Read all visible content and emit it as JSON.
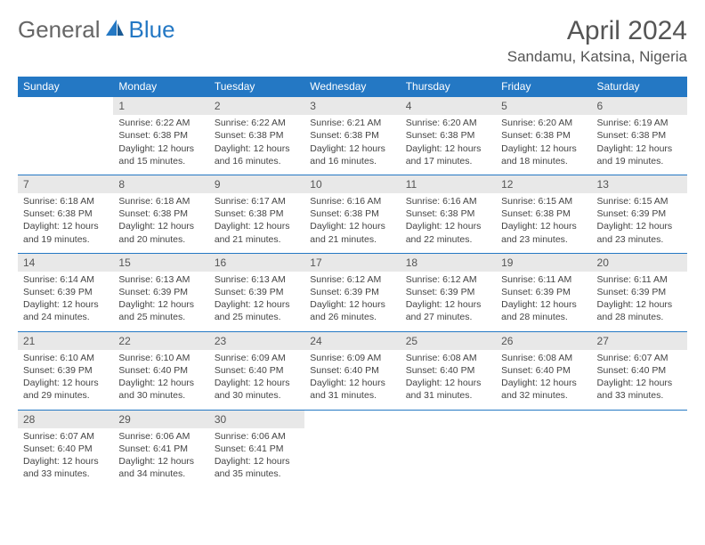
{
  "logo": {
    "part1": "General",
    "part2": "Blue"
  },
  "title": "April 2024",
  "location": "Sandamu, Katsina, Nigeria",
  "colors": {
    "header_bg": "#2478c4",
    "header_text": "#ffffff",
    "daynum_bg": "#e8e8e8",
    "cell_border": "#2478c4",
    "body_text": "#444444",
    "title_text": "#555555"
  },
  "typography": {
    "title_fontsize": 30,
    "location_fontsize": 17,
    "dayheader_fontsize": 12,
    "cell_fontsize": 10.5
  },
  "day_headers": [
    "Sunday",
    "Monday",
    "Tuesday",
    "Wednesday",
    "Thursday",
    "Friday",
    "Saturday"
  ],
  "weeks": [
    [
      {
        "n": "",
        "sr": "",
        "ss": "",
        "dl": ""
      },
      {
        "n": "1",
        "sr": "Sunrise: 6:22 AM",
        "ss": "Sunset: 6:38 PM",
        "dl": "Daylight: 12 hours and 15 minutes."
      },
      {
        "n": "2",
        "sr": "Sunrise: 6:22 AM",
        "ss": "Sunset: 6:38 PM",
        "dl": "Daylight: 12 hours and 16 minutes."
      },
      {
        "n": "3",
        "sr": "Sunrise: 6:21 AM",
        "ss": "Sunset: 6:38 PM",
        "dl": "Daylight: 12 hours and 16 minutes."
      },
      {
        "n": "4",
        "sr": "Sunrise: 6:20 AM",
        "ss": "Sunset: 6:38 PM",
        "dl": "Daylight: 12 hours and 17 minutes."
      },
      {
        "n": "5",
        "sr": "Sunrise: 6:20 AM",
        "ss": "Sunset: 6:38 PM",
        "dl": "Daylight: 12 hours and 18 minutes."
      },
      {
        "n": "6",
        "sr": "Sunrise: 6:19 AM",
        "ss": "Sunset: 6:38 PM",
        "dl": "Daylight: 12 hours and 19 minutes."
      }
    ],
    [
      {
        "n": "7",
        "sr": "Sunrise: 6:18 AM",
        "ss": "Sunset: 6:38 PM",
        "dl": "Daylight: 12 hours and 19 minutes."
      },
      {
        "n": "8",
        "sr": "Sunrise: 6:18 AM",
        "ss": "Sunset: 6:38 PM",
        "dl": "Daylight: 12 hours and 20 minutes."
      },
      {
        "n": "9",
        "sr": "Sunrise: 6:17 AM",
        "ss": "Sunset: 6:38 PM",
        "dl": "Daylight: 12 hours and 21 minutes."
      },
      {
        "n": "10",
        "sr": "Sunrise: 6:16 AM",
        "ss": "Sunset: 6:38 PM",
        "dl": "Daylight: 12 hours and 21 minutes."
      },
      {
        "n": "11",
        "sr": "Sunrise: 6:16 AM",
        "ss": "Sunset: 6:38 PM",
        "dl": "Daylight: 12 hours and 22 minutes."
      },
      {
        "n": "12",
        "sr": "Sunrise: 6:15 AM",
        "ss": "Sunset: 6:38 PM",
        "dl": "Daylight: 12 hours and 23 minutes."
      },
      {
        "n": "13",
        "sr": "Sunrise: 6:15 AM",
        "ss": "Sunset: 6:39 PM",
        "dl": "Daylight: 12 hours and 23 minutes."
      }
    ],
    [
      {
        "n": "14",
        "sr": "Sunrise: 6:14 AM",
        "ss": "Sunset: 6:39 PM",
        "dl": "Daylight: 12 hours and 24 minutes."
      },
      {
        "n": "15",
        "sr": "Sunrise: 6:13 AM",
        "ss": "Sunset: 6:39 PM",
        "dl": "Daylight: 12 hours and 25 minutes."
      },
      {
        "n": "16",
        "sr": "Sunrise: 6:13 AM",
        "ss": "Sunset: 6:39 PM",
        "dl": "Daylight: 12 hours and 25 minutes."
      },
      {
        "n": "17",
        "sr": "Sunrise: 6:12 AM",
        "ss": "Sunset: 6:39 PM",
        "dl": "Daylight: 12 hours and 26 minutes."
      },
      {
        "n": "18",
        "sr": "Sunrise: 6:12 AM",
        "ss": "Sunset: 6:39 PM",
        "dl": "Daylight: 12 hours and 27 minutes."
      },
      {
        "n": "19",
        "sr": "Sunrise: 6:11 AM",
        "ss": "Sunset: 6:39 PM",
        "dl": "Daylight: 12 hours and 28 minutes."
      },
      {
        "n": "20",
        "sr": "Sunrise: 6:11 AM",
        "ss": "Sunset: 6:39 PM",
        "dl": "Daylight: 12 hours and 28 minutes."
      }
    ],
    [
      {
        "n": "21",
        "sr": "Sunrise: 6:10 AM",
        "ss": "Sunset: 6:39 PM",
        "dl": "Daylight: 12 hours and 29 minutes."
      },
      {
        "n": "22",
        "sr": "Sunrise: 6:10 AM",
        "ss": "Sunset: 6:40 PM",
        "dl": "Daylight: 12 hours and 30 minutes."
      },
      {
        "n": "23",
        "sr": "Sunrise: 6:09 AM",
        "ss": "Sunset: 6:40 PM",
        "dl": "Daylight: 12 hours and 30 minutes."
      },
      {
        "n": "24",
        "sr": "Sunrise: 6:09 AM",
        "ss": "Sunset: 6:40 PM",
        "dl": "Daylight: 12 hours and 31 minutes."
      },
      {
        "n": "25",
        "sr": "Sunrise: 6:08 AM",
        "ss": "Sunset: 6:40 PM",
        "dl": "Daylight: 12 hours and 31 minutes."
      },
      {
        "n": "26",
        "sr": "Sunrise: 6:08 AM",
        "ss": "Sunset: 6:40 PM",
        "dl": "Daylight: 12 hours and 32 minutes."
      },
      {
        "n": "27",
        "sr": "Sunrise: 6:07 AM",
        "ss": "Sunset: 6:40 PM",
        "dl": "Daylight: 12 hours and 33 minutes."
      }
    ],
    [
      {
        "n": "28",
        "sr": "Sunrise: 6:07 AM",
        "ss": "Sunset: 6:40 PM",
        "dl": "Daylight: 12 hours and 33 minutes."
      },
      {
        "n": "29",
        "sr": "Sunrise: 6:06 AM",
        "ss": "Sunset: 6:41 PM",
        "dl": "Daylight: 12 hours and 34 minutes."
      },
      {
        "n": "30",
        "sr": "Sunrise: 6:06 AM",
        "ss": "Sunset: 6:41 PM",
        "dl": "Daylight: 12 hours and 35 minutes."
      },
      {
        "n": "",
        "sr": "",
        "ss": "",
        "dl": ""
      },
      {
        "n": "",
        "sr": "",
        "ss": "",
        "dl": ""
      },
      {
        "n": "",
        "sr": "",
        "ss": "",
        "dl": ""
      },
      {
        "n": "",
        "sr": "",
        "ss": "",
        "dl": ""
      }
    ]
  ]
}
